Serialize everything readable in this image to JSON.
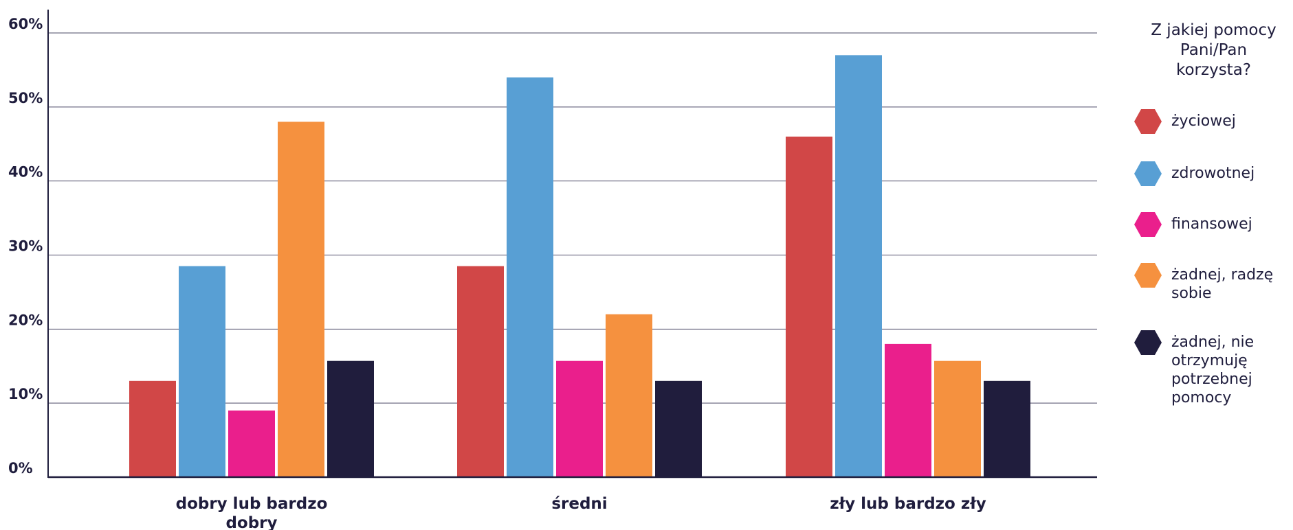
{
  "chart_data": {
    "type": "bar",
    "categories_lines": [
      [
        "dobry lub bardzo",
        "dobry"
      ],
      [
        "średni"
      ],
      [
        "zły lub bardzo zły"
      ]
    ],
    "categories": [
      "dobry lub bardzo dobry",
      "średni",
      "zły lub bardzo zły"
    ],
    "legend_title_lines": [
      "Z jakiej pomocy",
      "Pani/Pan",
      "korzysta?"
    ],
    "legend_title": "Z jakiej pomocy Pani/Pan korzysta?",
    "legend_position": "right",
    "grid": true,
    "ylim": [
      0,
      60
    ],
    "yticks": [
      0,
      10,
      20,
      30,
      40,
      50,
      60
    ],
    "ytick_labels": [
      "0%",
      "10%",
      "20%",
      "30%",
      "40%",
      "50%",
      "60%"
    ],
    "series": [
      {
        "name": "życiowej",
        "name_lines": [
          "życiowej"
        ],
        "color": "#d14747",
        "values": [
          13,
          28.5,
          46
        ]
      },
      {
        "name": "zdrowotnej",
        "name_lines": [
          "zdrowotnej"
        ],
        "color": "#589fd4",
        "values": [
          28.5,
          54,
          57
        ]
      },
      {
        "name": "finansowej",
        "name_lines": [
          "finansowej"
        ],
        "color": "#ea1f8c",
        "values": [
          9,
          15.7,
          18
        ]
      },
      {
        "name": "żadnej, radzę sobie",
        "name_lines": [
          "żadnej, radzę",
          "sobie"
        ],
        "color": "#f5913f",
        "values": [
          48,
          22,
          15.7
        ]
      },
      {
        "name": "żadnej, nie otrzymuję potrzebnej pomocy",
        "name_lines": [
          "żadnej, nie",
          "otrzymuję",
          "potrzebnej",
          "pomocy"
        ],
        "color": "#201d3d",
        "values": [
          15.7,
          13,
          13
        ]
      }
    ]
  }
}
